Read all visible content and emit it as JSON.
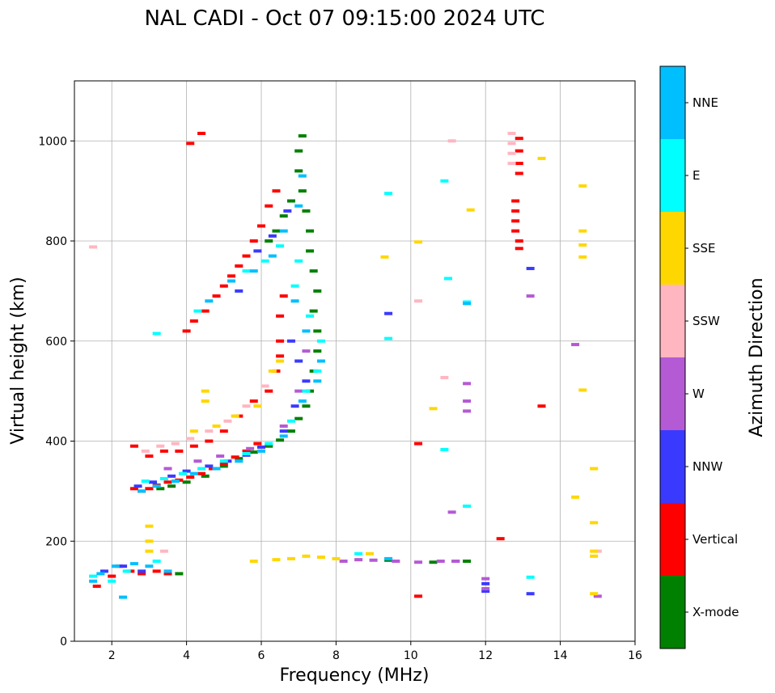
{
  "chart_data": {
    "type": "scatter",
    "title": "NAL CADI - Oct 07 09:15:00 2024 UTC",
    "xlabel": "Frequency (MHz)",
    "ylabel": "Virtual height (km)",
    "xlim": [
      1,
      16
    ],
    "ylim": [
      0,
      1120
    ],
    "xticks": [
      2,
      4,
      6,
      8,
      10,
      12,
      14,
      16
    ],
    "yticks": [
      0,
      200,
      400,
      600,
      800,
      1000
    ],
    "grid": true,
    "colorbar": {
      "title": "Azimuth Direction",
      "categories": [
        {
          "name": "X-mode",
          "color": "#008000"
        },
        {
          "name": "Vertical",
          "color": "#ff0000"
        },
        {
          "name": "NNW",
          "color": "#3a3aff"
        },
        {
          "name": "W",
          "color": "#b45ad4"
        },
        {
          "name": "SSW",
          "color": "#ffb6c1"
        },
        {
          "name": "SSE",
          "color": "#ffd700"
        },
        {
          "name": "E",
          "color": "#00ffff"
        },
        {
          "name": "NNE",
          "color": "#00bfff"
        }
      ]
    },
    "series": [
      {
        "name": "X-mode",
        "points": [
          [
            3.3,
            305
          ],
          [
            3.6,
            310
          ],
          [
            4.0,
            318
          ],
          [
            4.5,
            330
          ],
          [
            5.0,
            350
          ],
          [
            5.4,
            365
          ],
          [
            5.8,
            378
          ],
          [
            6.2,
            390
          ],
          [
            6.5,
            402
          ],
          [
            6.8,
            420
          ],
          [
            7.0,
            445
          ],
          [
            7.2,
            470
          ],
          [
            7.3,
            500
          ],
          [
            7.4,
            540
          ],
          [
            7.5,
            580
          ],
          [
            7.5,
            620
          ],
          [
            7.4,
            660
          ],
          [
            7.5,
            700
          ],
          [
            7.4,
            740
          ],
          [
            7.3,
            780
          ],
          [
            7.3,
            820
          ],
          [
            7.2,
            860
          ],
          [
            7.1,
            900
          ],
          [
            7.0,
            940
          ],
          [
            7.0,
            980
          ],
          [
            7.1,
            1010
          ],
          [
            6.2,
            800
          ],
          [
            6.4,
            820
          ],
          [
            6.6,
            850
          ],
          [
            6.8,
            880
          ],
          [
            3.8,
            135
          ],
          [
            11.2,
            160
          ],
          [
            11.5,
            160
          ],
          [
            10.6,
            158
          ],
          [
            9.4,
            162
          ]
        ]
      },
      {
        "name": "Vertical",
        "points": [
          [
            2.6,
            305
          ],
          [
            2.8,
            300
          ],
          [
            3.0,
            305
          ],
          [
            3.2,
            312
          ],
          [
            3.5,
            318
          ],
          [
            3.8,
            322
          ],
          [
            4.1,
            328
          ],
          [
            4.4,
            335
          ],
          [
            4.7,
            345
          ],
          [
            5.0,
            355
          ],
          [
            5.3,
            368
          ],
          [
            5.6,
            380
          ],
          [
            5.9,
            395
          ],
          [
            2.6,
            390
          ],
          [
            3.0,
            370
          ],
          [
            3.4,
            380
          ],
          [
            3.8,
            380
          ],
          [
            4.2,
            390
          ],
          [
            4.6,
            400
          ],
          [
            5.0,
            420
          ],
          [
            5.4,
            450
          ],
          [
            5.8,
            480
          ],
          [
            6.2,
            500
          ],
          [
            6.4,
            540
          ],
          [
            6.5,
            570
          ],
          [
            6.5,
            600
          ],
          [
            6.5,
            650
          ],
          [
            6.6,
            690
          ],
          [
            4.0,
            620
          ],
          [
            4.2,
            640
          ],
          [
            4.5,
            660
          ],
          [
            4.8,
            690
          ],
          [
            5.0,
            710
          ],
          [
            5.2,
            730
          ],
          [
            5.4,
            750
          ],
          [
            5.6,
            770
          ],
          [
            5.8,
            800
          ],
          [
            6.0,
            830
          ],
          [
            6.2,
            870
          ],
          [
            6.4,
            900
          ],
          [
            1.6,
            110
          ],
          [
            2.0,
            130
          ],
          [
            2.2,
            150
          ],
          [
            2.5,
            140
          ],
          [
            2.8,
            135
          ],
          [
            3.2,
            140
          ],
          [
            3.5,
            135
          ],
          [
            4.1,
            995
          ],
          [
            4.4,
            1015
          ],
          [
            12.9,
            1005
          ],
          [
            12.9,
            980
          ],
          [
            12.9,
            955
          ],
          [
            12.9,
            935
          ],
          [
            12.8,
            880
          ],
          [
            12.8,
            860
          ],
          [
            12.8,
            840
          ],
          [
            12.8,
            820
          ],
          [
            12.9,
            800
          ],
          [
            12.9,
            785
          ],
          [
            13.5,
            470
          ],
          [
            12.4,
            205
          ],
          [
            10.2,
            90
          ],
          [
            10.2,
            395
          ]
        ]
      },
      {
        "name": "NNW",
        "points": [
          [
            2.7,
            310
          ],
          [
            3.1,
            318
          ],
          [
            3.6,
            330
          ],
          [
            4.0,
            340
          ],
          [
            4.6,
            350
          ],
          [
            5.1,
            360
          ],
          [
            5.6,
            372
          ],
          [
            6.0,
            388
          ],
          [
            6.6,
            420
          ],
          [
            6.9,
            470
          ],
          [
            7.2,
            520
          ],
          [
            7.0,
            560
          ],
          [
            6.8,
            600
          ],
          [
            5.4,
            700
          ],
          [
            5.9,
            780
          ],
          [
            6.3,
            810
          ],
          [
            6.7,
            860
          ],
          [
            1.8,
            140
          ],
          [
            2.3,
            150
          ],
          [
            2.8,
            140
          ],
          [
            9.4,
            655
          ],
          [
            12.0,
            100
          ],
          [
            12.0,
            115
          ],
          [
            13.2,
            745
          ],
          [
            13.2,
            95
          ]
        ]
      },
      {
        "name": "W",
        "points": [
          [
            3.5,
            345
          ],
          [
            4.3,
            360
          ],
          [
            4.9,
            370
          ],
          [
            5.7,
            385
          ],
          [
            6.6,
            430
          ],
          [
            7.0,
            500
          ],
          [
            7.2,
            580
          ],
          [
            8.2,
            160
          ],
          [
            8.6,
            163
          ],
          [
            9.0,
            162
          ],
          [
            9.6,
            160
          ],
          [
            10.2,
            158
          ],
          [
            10.8,
            160
          ],
          [
            11.2,
            160
          ],
          [
            12.0,
            125
          ],
          [
            12.0,
            105
          ],
          [
            11.5,
            515
          ],
          [
            11.5,
            480
          ],
          [
            11.5,
            460
          ],
          [
            11.1,
            258
          ],
          [
            13.2,
            690
          ],
          [
            14.4,
            593
          ],
          [
            15.0,
            90
          ]
        ]
      },
      {
        "name": "SSW",
        "points": [
          [
            2.9,
            380
          ],
          [
            3.3,
            390
          ],
          [
            3.7,
            395
          ],
          [
            4.1,
            405
          ],
          [
            4.6,
            420
          ],
          [
            5.1,
            440
          ],
          [
            5.6,
            470
          ],
          [
            6.1,
            510
          ],
          [
            3.4,
            180
          ],
          [
            1.5,
            788
          ],
          [
            10.2,
            680
          ],
          [
            10.9,
            527
          ],
          [
            11.1,
            1000
          ],
          [
            12.7,
            1015
          ],
          [
            12.7,
            995
          ],
          [
            12.7,
            975
          ],
          [
            12.7,
            955
          ],
          [
            15.0,
            180
          ]
        ]
      },
      {
        "name": "SSE",
        "points": [
          [
            3.0,
            230
          ],
          [
            3.0,
            200
          ],
          [
            3.0,
            180
          ],
          [
            4.5,
            500
          ],
          [
            4.5,
            480
          ],
          [
            4.2,
            420
          ],
          [
            4.8,
            430
          ],
          [
            5.3,
            450
          ],
          [
            5.9,
            470
          ],
          [
            6.3,
            540
          ],
          [
            6.5,
            560
          ],
          [
            5.8,
            160
          ],
          [
            6.4,
            163
          ],
          [
            6.8,
            165
          ],
          [
            7.2,
            170
          ],
          [
            7.6,
            168
          ],
          [
            8.0,
            165
          ],
          [
            9.3,
            768
          ],
          [
            10.6,
            465
          ],
          [
            11.6,
            862
          ],
          [
            13.5,
            965
          ],
          [
            14.6,
            910
          ],
          [
            14.6,
            820
          ],
          [
            14.6,
            792
          ],
          [
            14.6,
            768
          ],
          [
            14.6,
            502
          ],
          [
            14.9,
            345
          ],
          [
            14.4,
            288
          ],
          [
            14.9,
            237
          ],
          [
            14.9,
            180
          ],
          [
            14.9,
            170
          ],
          [
            14.9,
            95
          ],
          [
            8.9,
            175
          ],
          [
            10.2,
            798
          ]
        ]
      },
      {
        "name": "E",
        "points": [
          [
            2.9,
            320
          ],
          [
            3.4,
            325
          ],
          [
            3.9,
            335
          ],
          [
            4.4,
            345
          ],
          [
            5.0,
            360
          ],
          [
            5.6,
            375
          ],
          [
            6.2,
            395
          ],
          [
            6.8,
            440
          ],
          [
            7.2,
            500
          ],
          [
            7.5,
            540
          ],
          [
            7.6,
            600
          ],
          [
            7.3,
            650
          ],
          [
            6.9,
            710
          ],
          [
            7.0,
            760
          ],
          [
            6.5,
            790
          ],
          [
            6.1,
            760
          ],
          [
            5.6,
            740
          ],
          [
            4.3,
            660
          ],
          [
            3.2,
            615
          ],
          [
            1.5,
            130
          ],
          [
            2.0,
            120
          ],
          [
            2.4,
            140
          ],
          [
            3.2,
            160
          ],
          [
            9.4,
            895
          ],
          [
            9.4,
            605
          ],
          [
            10.9,
            920
          ],
          [
            10.9,
            383
          ],
          [
            11.5,
            270
          ],
          [
            11.5,
            678
          ],
          [
            13.2,
            128
          ],
          [
            11.0,
            725
          ],
          [
            8.6,
            175
          ]
        ]
      },
      {
        "name": "NNE",
        "points": [
          [
            2.8,
            300
          ],
          [
            3.2,
            310
          ],
          [
            3.7,
            320
          ],
          [
            4.2,
            335
          ],
          [
            4.8,
            345
          ],
          [
            5.4,
            360
          ],
          [
            6.0,
            380
          ],
          [
            6.6,
            410
          ],
          [
            7.1,
            480
          ],
          [
            7.5,
            520
          ],
          [
            7.6,
            560
          ],
          [
            7.2,
            620
          ],
          [
            6.9,
            680
          ],
          [
            4.6,
            680
          ],
          [
            5.2,
            720
          ],
          [
            5.8,
            740
          ],
          [
            6.3,
            770
          ],
          [
            6.6,
            820
          ],
          [
            7.0,
            870
          ],
          [
            7.1,
            930
          ],
          [
            1.5,
            120
          ],
          [
            1.7,
            135
          ],
          [
            2.1,
            150
          ],
          [
            2.6,
            155
          ],
          [
            3.0,
            150
          ],
          [
            3.5,
            140
          ],
          [
            2.3,
            88
          ],
          [
            9.4,
            165
          ],
          [
            11.5,
            675
          ]
        ]
      }
    ]
  }
}
